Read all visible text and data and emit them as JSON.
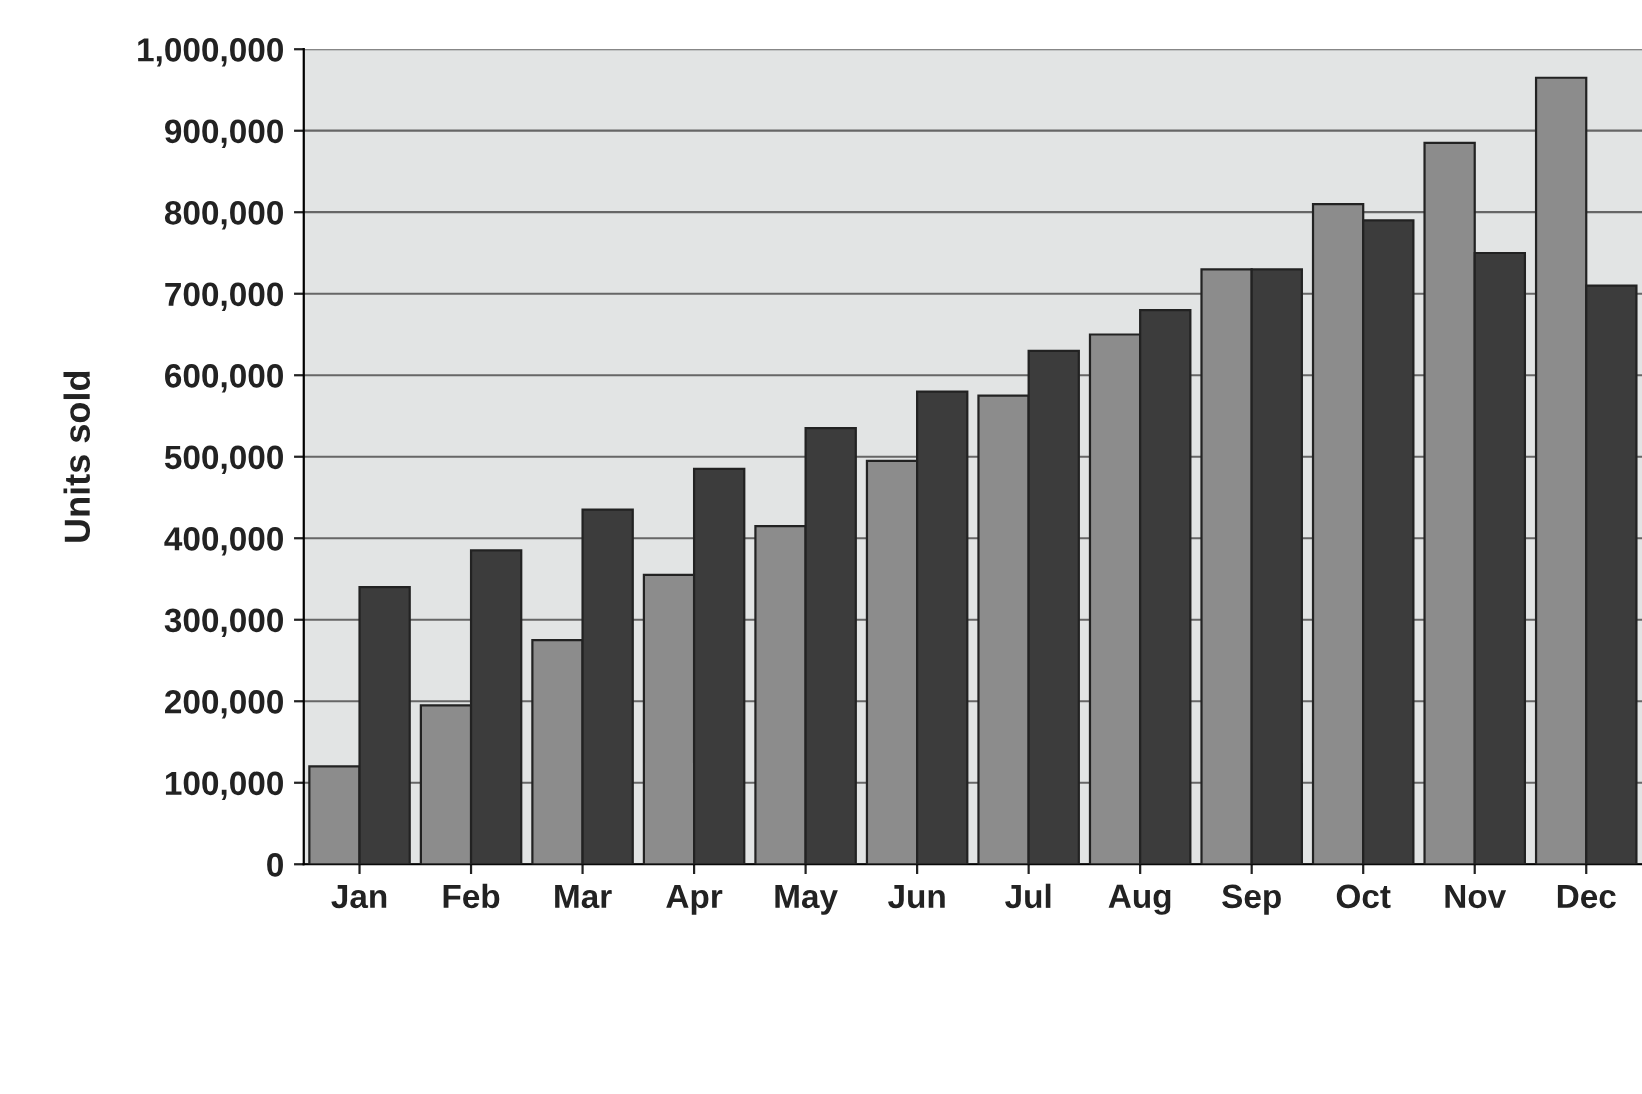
{
  "chart_data": {
    "type": "bar",
    "ylabel": "Units sold",
    "categories": [
      "Jan",
      "Feb",
      "Mar",
      "Apr",
      "May",
      "Jun",
      "Jul",
      "Aug",
      "Sep",
      "Oct",
      "Nov",
      "Dec"
    ],
    "series": [
      {
        "color": "#8c8c8c",
        "values": [
          120000,
          195000,
          275000,
          355000,
          415000,
          495000,
          575000,
          650000,
          730000,
          810000,
          885000,
          965000
        ]
      },
      {
        "color": "#3c3c3c",
        "values": [
          340000,
          385000,
          435000,
          485000,
          535000,
          580000,
          630000,
          680000,
          730000,
          790000,
          750000,
          710000
        ]
      }
    ],
    "ylim": [
      0,
      1000000
    ],
    "yticks": [
      {
        "value": 0,
        "label": "0"
      },
      {
        "value": 100000,
        "label": "100,000"
      },
      {
        "value": 200000,
        "label": "200,000"
      },
      {
        "value": 300000,
        "label": "300,000"
      },
      {
        "value": 400000,
        "label": "400,000"
      },
      {
        "value": 500000,
        "label": "500,000"
      },
      {
        "value": 600000,
        "label": "600,000"
      },
      {
        "value": 700000,
        "label": "700,000"
      },
      {
        "value": 800000,
        "label": "800,000"
      },
      {
        "value": 900000,
        "label": "900,000"
      },
      {
        "value": 1000000,
        "label": "1,000,000"
      }
    ],
    "grid": "y"
  }
}
